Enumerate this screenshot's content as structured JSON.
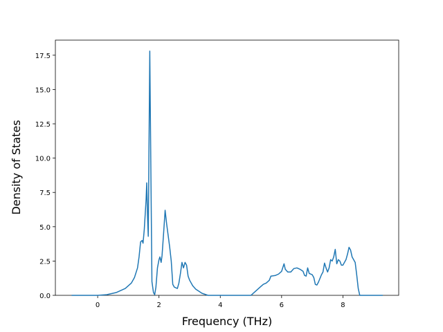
{
  "chart_data": {
    "type": "line",
    "xlabel": "Frequency (THz)",
    "ylabel": "Density of States",
    "xlim": [
      -1.38,
      9.82
    ],
    "ylim": [
      0,
      18.6
    ],
    "xticks": [
      0,
      2,
      4,
      6,
      8
    ],
    "yticks": [
      {
        "value": 0,
        "label": "0.0"
      },
      {
        "value": 2.5,
        "label": "2.5"
      },
      {
        "value": 5,
        "label": "5.0"
      },
      {
        "value": 7.5,
        "label": "7.5"
      },
      {
        "value": 10,
        "label": "10.0"
      },
      {
        "value": 12.5,
        "label": "12.5"
      },
      {
        "value": 15,
        "label": "15.0"
      },
      {
        "value": 17.5,
        "label": "17.5"
      }
    ],
    "grid": false,
    "series": [
      {
        "color": "#1f77b4",
        "x": [
          -0.85,
          0,
          0.3,
          0.6,
          0.9,
          1.1,
          1.2,
          1.3,
          1.35,
          1.4,
          1.45,
          1.48,
          1.52,
          1.58,
          1.6,
          1.63,
          1.65,
          1.7,
          1.74,
          1.77,
          1.82,
          1.86,
          1.9,
          1.95,
          2.0,
          2.03,
          2.07,
          2.1,
          2.15,
          2.2,
          2.25,
          2.35,
          2.4,
          2.45,
          2.5,
          2.6,
          2.65,
          2.7,
          2.75,
          2.8,
          2.85,
          2.9,
          2.95,
          3.0,
          3.1,
          3.2,
          3.3,
          3.4,
          3.6,
          5.0,
          5.1,
          5.3,
          5.4,
          5.5,
          5.6,
          5.65,
          5.8,
          5.9,
          6.0,
          6.05,
          6.08,
          6.12,
          6.2,
          6.3,
          6.4,
          6.5,
          6.6,
          6.7,
          6.75,
          6.8,
          6.85,
          6.9,
          7.0,
          7.05,
          7.1,
          7.15,
          7.2,
          7.3,
          7.35,
          7.4,
          7.45,
          7.5,
          7.55,
          7.6,
          7.65,
          7.7,
          7.75,
          7.8,
          7.85,
          7.9,
          7.95,
          8.0,
          8.1,
          8.15,
          8.2,
          8.25,
          8.3,
          8.4,
          8.45,
          8.5,
          8.55,
          9.3
        ],
        "values": [
          0,
          0,
          0.05,
          0.2,
          0.5,
          0.9,
          1.3,
          2.0,
          2.8,
          3.9,
          4.0,
          3.8,
          4.8,
          7.0,
          8.2,
          5.5,
          4.3,
          17.8,
          8,
          1.0,
          0.2,
          0.05,
          0.6,
          2.0,
          2.6,
          2.8,
          2.4,
          2.9,
          4.5,
          6.2,
          5.2,
          3.5,
          2.5,
          0.8,
          0.6,
          0.5,
          0.9,
          1.6,
          2.4,
          2.0,
          2.4,
          2.2,
          1.4,
          1.1,
          0.7,
          0.45,
          0.3,
          0.15,
          0,
          0,
          0.2,
          0.6,
          0.8,
          0.9,
          1.1,
          1.4,
          1.45,
          1.55,
          1.75,
          2.1,
          2.3,
          1.9,
          1.7,
          1.7,
          1.95,
          2.0,
          1.9,
          1.75,
          1.45,
          1.4,
          2.0,
          1.6,
          1.5,
          1.3,
          0.8,
          0.75,
          0.95,
          1.5,
          1.7,
          2.35,
          2.0,
          1.7,
          2.0,
          2.6,
          2.5,
          2.8,
          3.35,
          2.3,
          2.6,
          2.5,
          2.2,
          2.2,
          2.6,
          3.0,
          3.5,
          3.3,
          2.8,
          2.4,
          1.5,
          0.5,
          0,
          0
        ]
      }
    ]
  }
}
